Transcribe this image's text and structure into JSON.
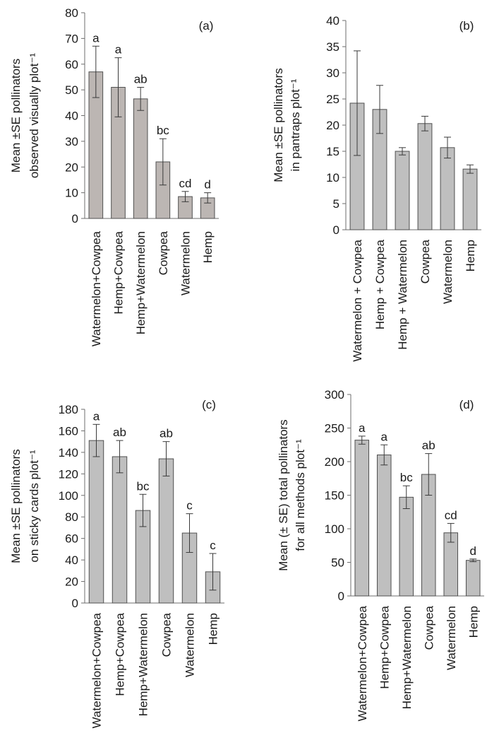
{
  "colors": {
    "bar_a": "#bcb6b3",
    "bar_default": "#bfbfbf",
    "stroke": "#505050",
    "axis": "#6e6e6e",
    "text": "#1a1a1a"
  },
  "chart_data": [
    {
      "panel": "(a)",
      "type": "bar",
      "ylabel_lines": [
        "Mean ±SE pollinators",
        "observed visually plot⁻¹"
      ],
      "categories": [
        "Watermelon+Cowpea",
        "Hemp+Cowpea",
        "Hemp+Watermelon",
        "Cowpea",
        "Watermelon",
        "Hemp"
      ],
      "values": [
        57,
        51,
        46.5,
        22,
        8.5,
        8
      ],
      "errors": [
        10,
        11.5,
        4.5,
        9,
        2,
        2
      ],
      "letters": [
        "a",
        "a",
        "ab",
        "bc",
        "cd",
        "d"
      ],
      "ylim": [
        0,
        80
      ],
      "yticks": [
        0,
        10,
        20,
        30,
        40,
        50,
        60,
        70,
        80
      ],
      "color": "#bcb6b3"
    },
    {
      "panel": "(b)",
      "type": "bar",
      "ylabel_lines": [
        "Mean ±SE pollinators",
        "in pantraps plot⁻¹"
      ],
      "categories": [
        "Watermelon + Cowpea",
        "Hemp + Cowpea",
        "Hemp + Watermelon",
        "Cowpea",
        "Watermelon",
        "Hemp"
      ],
      "values": [
        24.2,
        23,
        15,
        20.3,
        15.7,
        11.6
      ],
      "errors": [
        10,
        4.6,
        0.7,
        1.4,
        2,
        0.8
      ],
      "letters": [],
      "ylim": [
        0,
        40
      ],
      "yticks": [
        0,
        5,
        10,
        15,
        20,
        25,
        30,
        35,
        40
      ],
      "color": "#bfbfbf"
    },
    {
      "panel": "(c)",
      "type": "bar",
      "ylabel_lines": [
        "Mean ±SE pollinators",
        "on sticky cards plot⁻¹"
      ],
      "categories": [
        "Watermelon+Cowpea",
        "Hemp+Cowpea",
        "Hemp+Watermelon",
        "Cowpea",
        "Watermelon",
        "Hemp"
      ],
      "values": [
        151,
        136,
        86,
        134,
        65,
        29
      ],
      "errors": [
        15,
        15,
        15,
        16,
        18,
        17
      ],
      "letters": [
        "a",
        "ab",
        "bc",
        "ab",
        "c",
        "c"
      ],
      "ylim": [
        0,
        180
      ],
      "yticks": [
        0,
        20,
        40,
        60,
        80,
        100,
        120,
        140,
        160,
        180
      ],
      "color": "#bfbfbf"
    },
    {
      "panel": "(d)",
      "type": "bar",
      "ylabel_lines": [
        "Mean (± SE) total pollinators",
        "for all methods plot⁻¹"
      ],
      "categories": [
        "Watermelon+Cowpea",
        "Hemp+Cowpea",
        "Hemp+Watermelon",
        "Cowpea",
        "Watermelon",
        "Hemp"
      ],
      "values": [
        232,
        210,
        147,
        181,
        94,
        53
      ],
      "errors": [
        6,
        15,
        17,
        31,
        14,
        2
      ],
      "letters": [
        "a",
        "a",
        "bc",
        "ab",
        "cd",
        "d"
      ],
      "ylim": [
        0,
        300
      ],
      "yticks": [
        0,
        50,
        100,
        150,
        200,
        250,
        300
      ],
      "color": "#bfbfbf"
    }
  ]
}
